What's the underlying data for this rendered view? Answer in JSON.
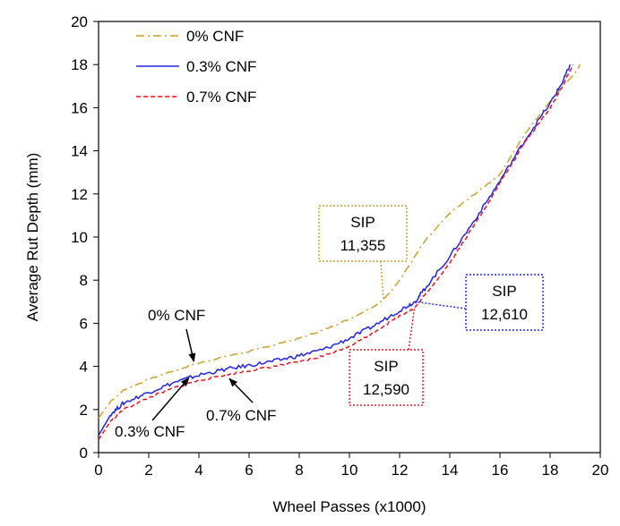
{
  "colors": {
    "cnf0": "#C9A227",
    "cnf03": "#2323E6",
    "cnf07": "#E8141E",
    "axis": "#000000"
  },
  "chart_data": {
    "type": "line",
    "title": "",
    "xlabel": "Wheel Passes (x1000)",
    "ylabel": "Average Rut Depth (mm)",
    "xlim": [
      0,
      20
    ],
    "ylim": [
      0,
      20
    ],
    "xticks": [
      0,
      2,
      4,
      6,
      8,
      10,
      12,
      14,
      16,
      18,
      20
    ],
    "yticks": [
      0,
      2,
      4,
      6,
      8,
      10,
      12,
      14,
      16,
      18,
      20
    ],
    "xtick_labels": [
      "0",
      "2",
      "4",
      "6",
      "8",
      "10",
      "12",
      "14",
      "16",
      "18",
      "20"
    ],
    "ytick_labels": [
      "0",
      "2",
      "4",
      "6",
      "8",
      "10",
      "12",
      "14",
      "16",
      "18",
      "20"
    ],
    "grid": false,
    "legend_position": "top-left",
    "series": [
      {
        "name": "0% CNF",
        "x": [
          0,
          0.5,
          1,
          2,
          3,
          4,
          5,
          6,
          7,
          8,
          9,
          10,
          11,
          11.355,
          12,
          13,
          14,
          15,
          16,
          17,
          18,
          18.5,
          19,
          19.2
        ],
        "y": [
          1.6,
          2.4,
          2.9,
          3.4,
          3.8,
          4.15,
          4.45,
          4.7,
          5.0,
          5.3,
          5.7,
          6.2,
          6.8,
          7.1,
          8.0,
          9.8,
          11.1,
          12.0,
          12.9,
          14.8,
          16.3,
          17.0,
          17.6,
          18.0
        ]
      },
      {
        "name": "0.3% CNF",
        "x": [
          0,
          0.5,
          1,
          2,
          3,
          4,
          5,
          6,
          7,
          8,
          9,
          10,
          11,
          12,
          12.61,
          13,
          14,
          15,
          16,
          17,
          18,
          18.5,
          18.8
        ],
        "y": [
          0.8,
          1.8,
          2.3,
          2.8,
          3.25,
          3.6,
          3.85,
          4.05,
          4.25,
          4.5,
          4.8,
          5.3,
          5.9,
          6.6,
          7.0,
          7.6,
          9.1,
          10.8,
          12.6,
          14.5,
          16.2,
          17.2,
          18.0
        ]
      },
      {
        "name": "0.7% CNF",
        "x": [
          0,
          0.5,
          1,
          2,
          3,
          4,
          5,
          6,
          7,
          8,
          9,
          10,
          11,
          12,
          12.59,
          13,
          14,
          15,
          16,
          17,
          18,
          18.5,
          18.9
        ],
        "y": [
          0.6,
          1.5,
          2.0,
          2.55,
          3.0,
          3.35,
          3.6,
          3.8,
          4.0,
          4.2,
          4.5,
          4.95,
          5.6,
          6.35,
          6.7,
          7.3,
          8.8,
          10.6,
          12.5,
          14.4,
          16.0,
          17.0,
          18.0
        ]
      }
    ],
    "annotations": {
      "sip_0": {
        "line1": "SIP",
        "line2": "11,355",
        "x": 11.355,
        "y": 7.1
      },
      "sip_03": {
        "line1": "SIP",
        "line2": "12,610",
        "x": 12.61,
        "y": 7.0
      },
      "sip_07": {
        "line1": "SIP",
        "line2": "12,590",
        "x": 12.59,
        "y": 6.7
      },
      "label_0": {
        "text": "0% CNF",
        "x": 3.8,
        "y": 4.15
      },
      "label_03": {
        "text": "0.3% CNF",
        "x": 3.6,
        "y": 3.55
      },
      "label_07": {
        "text": "0.7% CNF",
        "x": 5.5,
        "y": 3.6
      }
    }
  },
  "legend": {
    "items": [
      {
        "label": "0% CNF"
      },
      {
        "label": "0.3% CNF"
      },
      {
        "label": "0.7% CNF"
      }
    ]
  }
}
